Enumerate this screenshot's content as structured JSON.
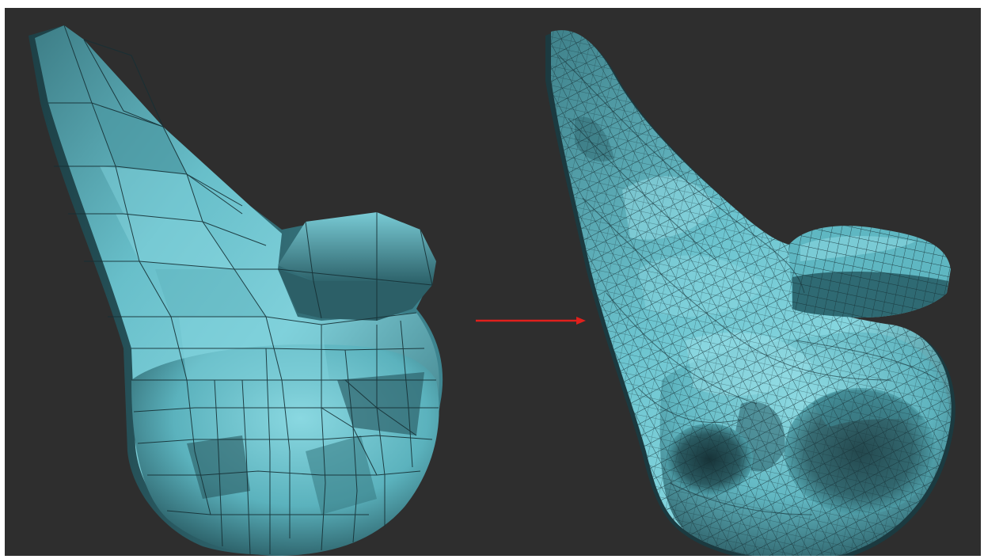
{
  "scene": {
    "background_color": "#2e2e2e",
    "mesh_color": "#6cc4cf",
    "mesh_highlight_color": "#a6e3ea",
    "mesh_shadow_color": "#1f3f45",
    "wire_color": "#163035",
    "arrow_color": "#e0201c"
  },
  "left_mesh": {
    "label": "low-poly-mesh",
    "topology": "sparse"
  },
  "right_mesh": {
    "label": "high-poly-mesh",
    "topology": "dense"
  },
  "arrow": {
    "icon": "right-arrow-icon",
    "direction": "right"
  }
}
